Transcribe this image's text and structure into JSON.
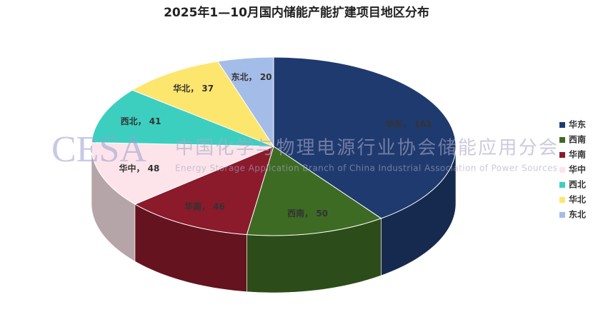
{
  "chart_data": {
    "type": "pie3d",
    "title": "2025年1—10月国内储能产能扩建项目地区分布",
    "categories": [
      "华东",
      "西南",
      "华南",
      "华中",
      "西北",
      "华北",
      "东北"
    ],
    "values": [
      161,
      50,
      46,
      48,
      41,
      37,
      20
    ],
    "value_labels": [
      "华东， 161",
      "西南， 50",
      "华南， 46",
      "华中， 48",
      "西北， 41",
      "华北， 37",
      "东北， 20"
    ],
    "colors": [
      "#1f3a6e",
      "#3d6b23",
      "#8b1a2b",
      "#fce4ea",
      "#3ccfc0",
      "#fde66e",
      "#a4bde8"
    ],
    "legend": "right"
  },
  "watermark": {
    "logo": "CESA",
    "name": "中国化学与物理电源行业协会储能应用分会",
    "english": "Energy Storage Application Branch of China Industrial Association of Power Sources"
  }
}
